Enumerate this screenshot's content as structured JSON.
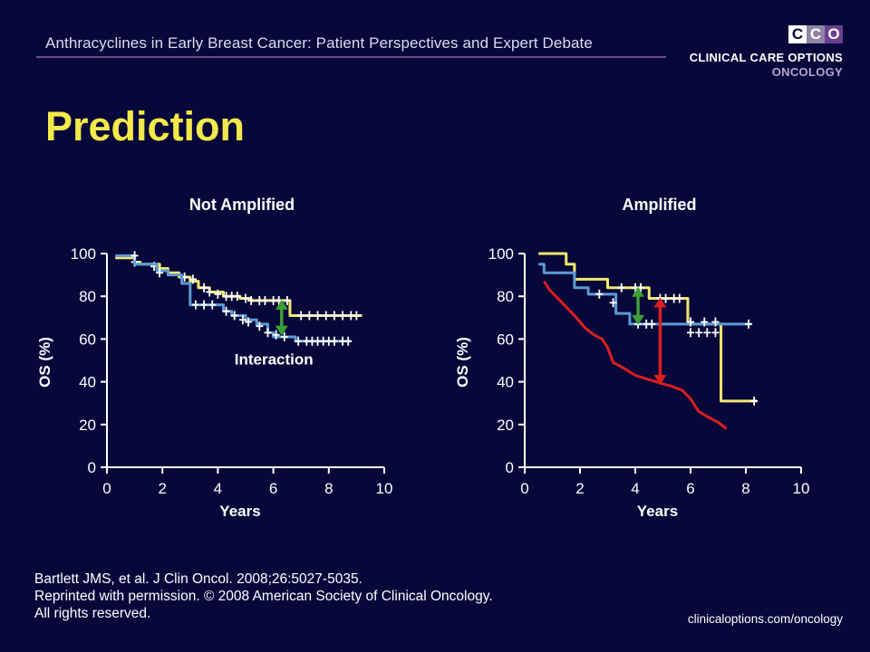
{
  "header": {
    "title": "Anthracyclines in Early Breast Cancer: Patient Perspectives and Expert Debate"
  },
  "logo": {
    "box_colors": [
      "#ffffff",
      "#8f86a6",
      "#6b3f8f"
    ],
    "box_letters": [
      "C",
      "C",
      "O"
    ],
    "line1": "CLINICAL CARE OPTIONS",
    "line2": "ONCOLOGY"
  },
  "slide": {
    "title": "Prediction"
  },
  "chart_data": [
    {
      "type": "line",
      "title": "Not Amplified",
      "xlabel": "Years",
      "ylabel": "OS (%)",
      "xlim": [
        0,
        10
      ],
      "ylim": [
        0,
        100
      ],
      "xticks": [
        0,
        2,
        4,
        6,
        8,
        10
      ],
      "yticks": [
        0,
        20,
        40,
        60,
        80,
        100
      ],
      "annotation": "Interaction",
      "annotation_color": "#3aa035",
      "arrow": {
        "x": 6.3,
        "y_from": 78,
        "y_to": 62
      },
      "series": [
        {
          "color": "#f2e86c",
          "step": true,
          "x": [
            0.3,
            1.0,
            1.2,
            1.9,
            2.2,
            2.6,
            3.0,
            3.3,
            3.7,
            4.2,
            4.8,
            5.2,
            6.6,
            9.2
          ],
          "y": [
            98,
            96,
            95,
            93,
            91,
            89,
            87,
            84,
            82,
            80,
            79,
            78,
            71,
            71
          ],
          "censors": [
            [
              1.0,
              96
            ],
            [
              1.7,
              94
            ],
            [
              2.8,
              89
            ],
            [
              3.1,
              88
            ],
            [
              3.5,
              84
            ],
            [
              3.7,
              82
            ],
            [
              4.0,
              81
            ],
            [
              4.3,
              80
            ],
            [
              4.5,
              80
            ],
            [
              4.7,
              80
            ],
            [
              5.0,
              79
            ],
            [
              5.2,
              78
            ],
            [
              5.5,
              78
            ],
            [
              5.7,
              78
            ],
            [
              6.0,
              78
            ],
            [
              6.2,
              78
            ],
            [
              6.5,
              78
            ],
            [
              7.0,
              71
            ],
            [
              7.3,
              71
            ],
            [
              7.6,
              71
            ],
            [
              7.9,
              71
            ],
            [
              8.2,
              71
            ],
            [
              8.5,
              71
            ],
            [
              8.8,
              71
            ],
            [
              9.0,
              71
            ]
          ]
        },
        {
          "color": "#5b9bd5",
          "step": true,
          "x": [
            0.3,
            1.0,
            1.8,
            2.2,
            2.7,
            3.0,
            4.2,
            4.5,
            5.0,
            5.4,
            5.8,
            6.0,
            6.4,
            6.8,
            8.8
          ],
          "y": [
            99,
            95,
            92,
            90,
            86,
            76,
            73,
            71,
            69,
            67,
            63,
            61,
            61,
            59,
            59
          ],
          "censors": [
            [
              1.0,
              99
            ],
            [
              1.9,
              91
            ],
            [
              3.2,
              76
            ],
            [
              3.5,
              76
            ],
            [
              3.8,
              76
            ],
            [
              4.3,
              73
            ],
            [
              4.6,
              71
            ],
            [
              4.9,
              69
            ],
            [
              5.1,
              68
            ],
            [
              5.5,
              66
            ],
            [
              5.8,
              63
            ],
            [
              6.1,
              62
            ],
            [
              6.4,
              61
            ],
            [
              6.9,
              59
            ],
            [
              7.2,
              59
            ],
            [
              7.4,
              59
            ],
            [
              7.6,
              59
            ],
            [
              7.8,
              59
            ],
            [
              8.0,
              59
            ],
            [
              8.2,
              59
            ],
            [
              8.5,
              59
            ],
            [
              8.7,
              59
            ]
          ]
        }
      ]
    },
    {
      "type": "line",
      "title": "Amplified",
      "xlabel": "Years",
      "ylabel": "OS (%)",
      "xlim": [
        0,
        10
      ],
      "ylim": [
        0,
        100
      ],
      "xticks": [
        0,
        2,
        4,
        6,
        8,
        10
      ],
      "yticks": [
        0,
        20,
        40,
        60,
        80,
        100
      ],
      "arrows": [
        {
          "x": 4.1,
          "y_from": 84,
          "y_to": 67,
          "color": "#3aa035"
        },
        {
          "x": 4.9,
          "y_from": 79,
          "y_to": 39,
          "color": "#d91f1f"
        }
      ],
      "series": [
        {
          "color": "#f2e86c",
          "step": true,
          "x": [
            0.5,
            1.5,
            1.8,
            3.0,
            4.5,
            5.9,
            7.1,
            8.4
          ],
          "y": [
            100,
            95,
            88,
            84,
            79,
            67,
            31,
            31
          ],
          "censors": [
            [
              3.5,
              84
            ],
            [
              4.0,
              84
            ],
            [
              4.2,
              84
            ],
            [
              4.9,
              79
            ],
            [
              5.1,
              79
            ],
            [
              5.4,
              79
            ],
            [
              5.6,
              79
            ],
            [
              6.0,
              63
            ],
            [
              6.3,
              63
            ],
            [
              6.6,
              63
            ],
            [
              6.9,
              63
            ],
            [
              8.3,
              31
            ]
          ]
        },
        {
          "color": "#5b9bd5",
          "step": true,
          "x": [
            0.5,
            0.7,
            1.8,
            2.3,
            3.3,
            3.8,
            8.2
          ],
          "y": [
            95,
            91,
            84,
            81,
            72,
            67,
            67
          ],
          "censors": [
            [
              2.7,
              81
            ],
            [
              3.2,
              77
            ],
            [
              4.1,
              67
            ],
            [
              4.4,
              67
            ],
            [
              4.6,
              67
            ],
            [
              6.0,
              68
            ],
            [
              6.5,
              68
            ],
            [
              6.9,
              68
            ],
            [
              8.1,
              67
            ]
          ]
        },
        {
          "color": "#d91f1f",
          "step": false,
          "x": [
            0.7,
            0.9,
            1.2,
            1.5,
            1.8,
            2.0,
            2.2,
            2.5,
            2.8,
            3.0,
            3.2,
            3.5,
            4.0,
            4.5,
            5.0,
            5.3,
            5.7,
            6.0,
            6.3,
            6.7,
            7.0,
            7.3
          ],
          "y": [
            87,
            83,
            79,
            75,
            71,
            68,
            65,
            62,
            60,
            56,
            49,
            47,
            43,
            41,
            39,
            38,
            36,
            32,
            26,
            23,
            21,
            18
          ],
          "censors": []
        }
      ]
    }
  ],
  "citation": {
    "line1": "Bartlett JMS, et al. J Clin Oncol. 2008;26:5027-5035.",
    "line2": "Reprinted with permission. © 2008 American Society of Clinical Oncology.",
    "line3": "All rights reserved."
  },
  "footer": {
    "url": "clinicaloptions.com/oncology"
  }
}
